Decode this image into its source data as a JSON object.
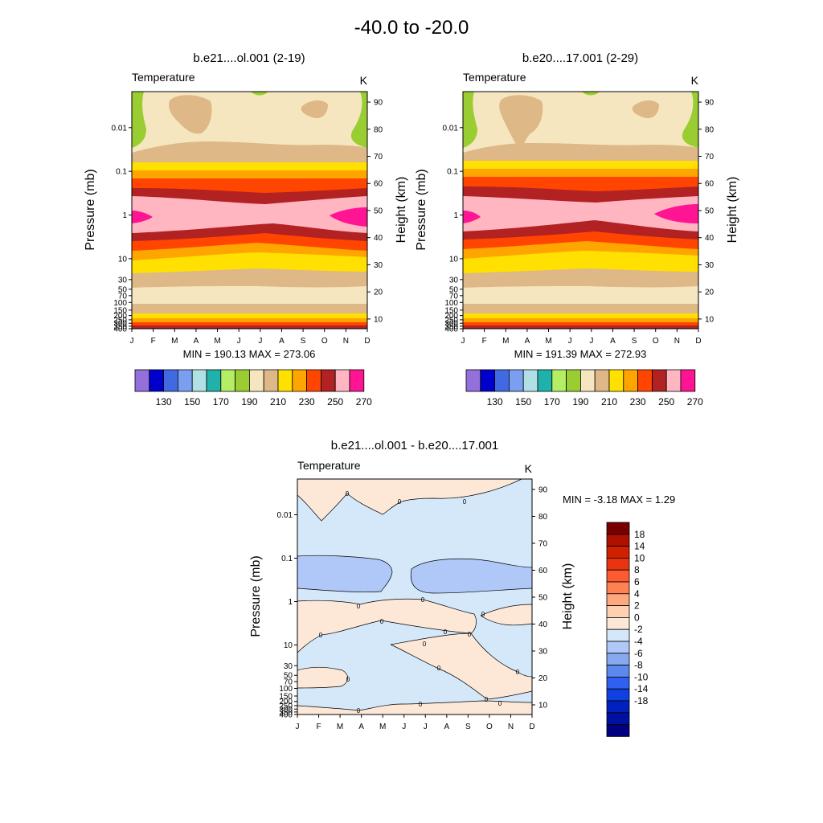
{
  "chart_data": {
    "type": "contour",
    "title": "-40.0 to -20.0",
    "months": [
      "J",
      "F",
      "M",
      "A",
      "M",
      "J",
      "J",
      "A",
      "S",
      "O",
      "N",
      "D"
    ],
    "pressure_ticks": [
      "0.01",
      "0.1",
      "1",
      "10",
      "30",
      "50",
      "70",
      "100",
      "150",
      "200",
      "250",
      "300",
      "350",
      "400"
    ],
    "pressure_tick_values": [
      0.01,
      0.1,
      1,
      10,
      30,
      50,
      70,
      100,
      150,
      200,
      250,
      300,
      350,
      400
    ],
    "height_ticks": [
      "10",
      "20",
      "30",
      "40",
      "50",
      "60",
      "70",
      "80",
      "90"
    ],
    "height_tick_values": [
      10,
      20,
      30,
      40,
      50,
      60,
      70,
      80,
      90
    ],
    "panels": [
      {
        "title": "b.e21....ol.001 (2-19)",
        "left_label": "Temperature",
        "units": "K",
        "ylabel": "Pressure (mb)",
        "y2label": "Height (km)",
        "stats": "MIN = 190.13  MAX = 273.06",
        "min": 190.13,
        "max": 273.06
      },
      {
        "title": "b.e20....17.001 (2-29)",
        "left_label": "Temperature",
        "units": "K",
        "ylabel": "Pressure (mb)",
        "y2label": "Height (km)",
        "stats": "MIN = 191.39  MAX = 272.93",
        "min": 191.39,
        "max": 272.93
      },
      {
        "title": "b.e21....ol.001 - b.e20....17.001",
        "left_label": "Temperature",
        "units": "K",
        "ylabel": "Pressure (mb)",
        "y2label": "Height (km)",
        "stats": "MIN =  -3.18  MAX =   1.29",
        "min": -3.18,
        "max": 1.29,
        "contour_label": "0"
      }
    ],
    "abs_colorbar": {
      "colors": [
        "#9370db",
        "#0000cd",
        "#4169e1",
        "#7b9ff0",
        "#b0e0e6",
        "#20b2aa",
        "#b4ee64",
        "#9acd32",
        "#f5e6c0",
        "#deb887",
        "#ffe000",
        "#ffa500",
        "#ff4500",
        "#b22222",
        "#ffb6c1",
        "#ff1493"
      ],
      "labels": [
        "130",
        "150",
        "170",
        "190",
        "210",
        "230",
        "250",
        "270"
      ]
    },
    "diff_colorbar": {
      "colors": [
        "#7a0000",
        "#b01000",
        "#d02000",
        "#e83410",
        "#ff5a30",
        "#ff8050",
        "#ffa880",
        "#ffd0b0",
        "#fde8d8",
        "#d4e8fa",
        "#b0c8f8",
        "#88a8f0",
        "#5c88f0",
        "#3060f0",
        "#1040e0",
        "#0020c0",
        "#0010a0",
        "#000080"
      ],
      "labels": [
        "18",
        "14",
        "10",
        "8",
        "6",
        "4",
        "2",
        "0",
        "-2",
        "-4",
        "-6",
        "-8",
        "-10",
        "-14",
        "-18"
      ]
    }
  }
}
